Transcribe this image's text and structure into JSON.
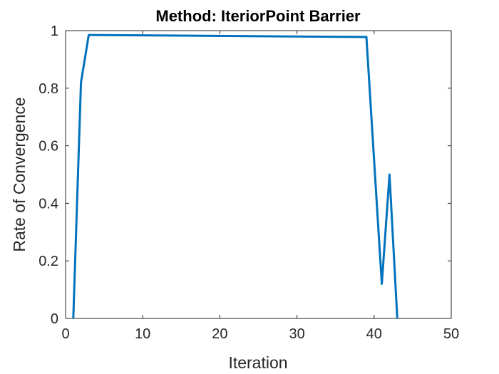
{
  "chart_data": {
    "type": "line",
    "title": "Method: IteriorPoint Barrier",
    "xlabel": "Iteration",
    "ylabel": "Rate of Convergence",
    "xlim": [
      0,
      50
    ],
    "ylim": [
      0,
      1
    ],
    "xticks": [
      "0",
      "10",
      "20",
      "30",
      "40",
      "50"
    ],
    "yticks": [
      "0",
      "0.2",
      "0.4",
      "0.6",
      "0.8",
      "1"
    ],
    "grid": false,
    "series": [
      {
        "color": "#0072BD",
        "x": [
          1,
          2,
          3,
          39,
          41,
          42,
          43
        ],
        "y": [
          0,
          0.82,
          0.985,
          0.978,
          0.12,
          0.5,
          0
        ]
      }
    ]
  }
}
